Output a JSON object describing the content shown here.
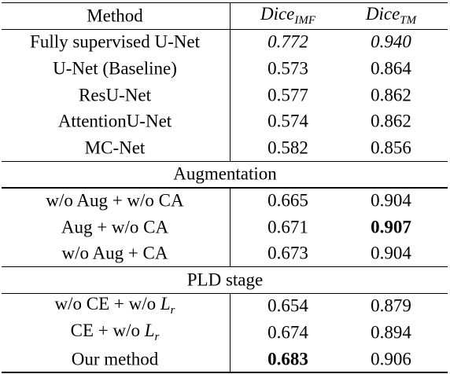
{
  "table": {
    "header": [
      "Method",
      {
        "math": "Dice",
        "sub": "IMF"
      },
      {
        "math": "Dice",
        "sub": "TM"
      }
    ],
    "rows": [
      [
        {
          "text": "Fully supervised U-Net"
        },
        {
          "text": "0.772",
          "italic": true
        },
        {
          "text": "0.940",
          "italic": true
        }
      ],
      [
        {
          "text": "U-Net (Baseline)"
        },
        {
          "text": "0.573"
        },
        {
          "text": "0.864"
        }
      ],
      [
        {
          "text": "ResU-Net"
        },
        {
          "text": "0.577"
        },
        {
          "text": "0.862"
        }
      ],
      [
        {
          "text": "AttentionU-Net"
        },
        {
          "text": "0.574"
        },
        {
          "text": "0.862"
        }
      ],
      [
        {
          "text": "MC-Net"
        },
        {
          "text": "0.582"
        },
        {
          "text": "0.856"
        }
      ]
    ],
    "sections": [
      {
        "title": "Augmentation",
        "rows": [
          [
            {
              "text": "w/o Aug + w/o CA"
            },
            {
              "text": "0.665"
            },
            {
              "text": "0.904"
            }
          ],
          [
            {
              "text": "Aug + w/o CA"
            },
            {
              "text": "0.671"
            },
            {
              "text": "0.907",
              "bold": true
            }
          ],
          [
            {
              "text": "w/o Aug + CA"
            },
            {
              "text": "0.673"
            },
            {
              "text": "0.904"
            }
          ]
        ]
      },
      {
        "title": "PLD stage",
        "rows": [
          [
            {
              "text": "w/o CE + w/o",
              "math": "L",
              "sub": "r"
            },
            {
              "text": "0.654"
            },
            {
              "text": "0.879"
            }
          ],
          [
            {
              "text": "CE + w/o",
              "math": "L",
              "sub": "r"
            },
            {
              "text": "0.674"
            },
            {
              "text": "0.894"
            }
          ],
          [
            {
              "text": "Our method"
            },
            {
              "text": "0.683",
              "bold": true
            },
            {
              "text": "0.906"
            }
          ]
        ]
      }
    ]
  }
}
